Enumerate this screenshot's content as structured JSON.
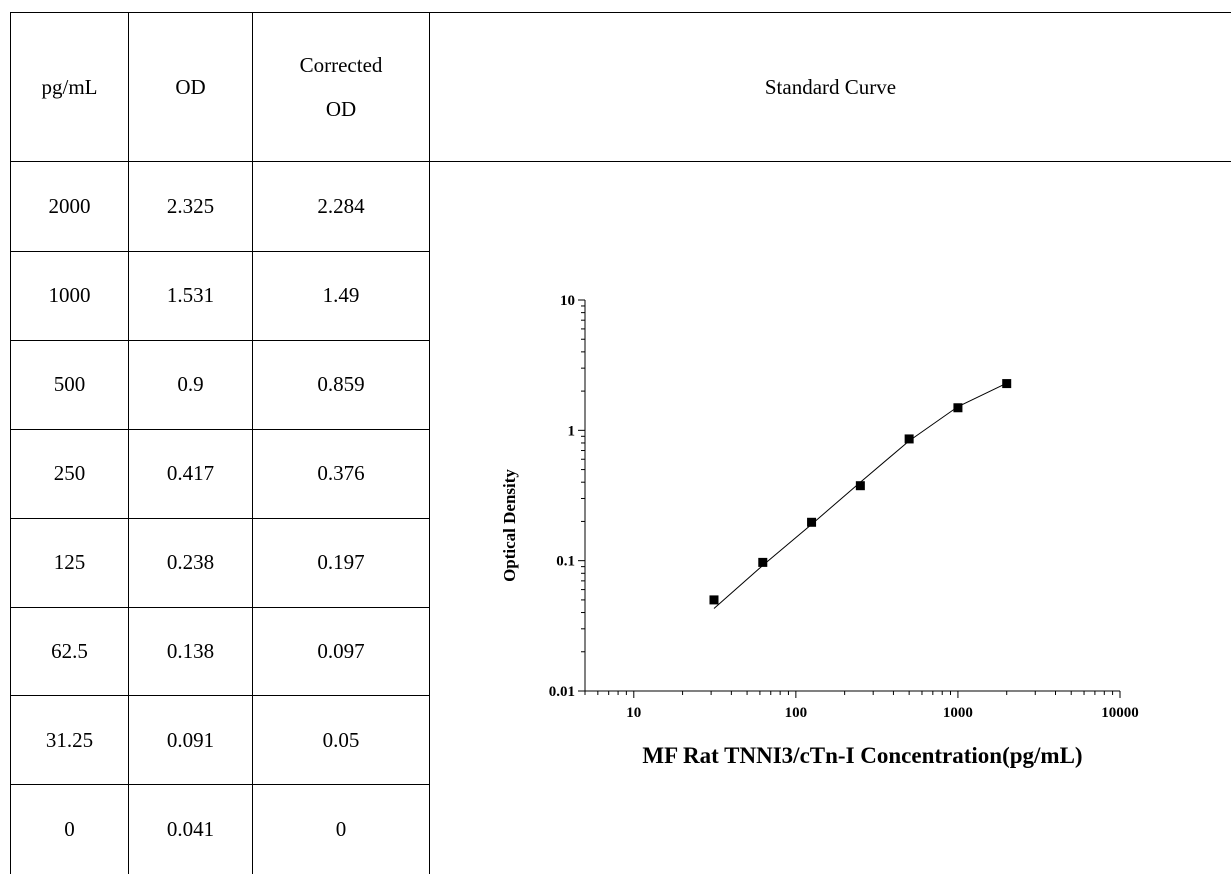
{
  "table": {
    "headers": {
      "conc": "pg/mL",
      "od": "OD",
      "corrected_line1": "Corrected",
      "corrected_line2": "OD"
    },
    "rows": [
      {
        "conc": "2000",
        "od": "2.325",
        "corrected": "2.284"
      },
      {
        "conc": "1000",
        "od": "1.531",
        "corrected": "1.49"
      },
      {
        "conc": "500",
        "od": "0.9",
        "corrected": "0.859"
      },
      {
        "conc": "250",
        "od": "0.417",
        "corrected": "0.376"
      },
      {
        "conc": "125",
        "od": "0.238",
        "corrected": "0.197"
      },
      {
        "conc": "62.5",
        "od": "0.138",
        "corrected": "0.097"
      },
      {
        "conc": "31.25",
        "od": "0.091",
        "corrected": "0.05"
      },
      {
        "conc": "0",
        "od": "0.041",
        "corrected": "0"
      }
    ],
    "curve_header": "Standard Curve"
  },
  "chart_data": {
    "type": "scatter",
    "title": "",
    "xlabel": "MF Rat TNNI3/cTn-I Concentration(pg/mL)",
    "ylabel": "Optical Density",
    "x_scale": "log",
    "y_scale": "log",
    "xlim": [
      5,
      10000
    ],
    "ylim": [
      0.01,
      10
    ],
    "x_ticks": [
      "10",
      "100",
      "1000",
      "10000"
    ],
    "y_ticks": [
      "0.01",
      "0.1",
      "1",
      "10"
    ],
    "grid": false,
    "legend": "none",
    "series": [
      {
        "marker": "square",
        "x": [
          31.25,
          62.5,
          125,
          250,
          500,
          1000,
          2000
        ],
        "y": [
          0.05,
          0.097,
          0.197,
          0.376,
          0.859,
          1.49,
          2.284
        ]
      }
    ],
    "fit_curve": {
      "x": [
        31.25,
        62.5,
        125,
        250,
        500,
        1000,
        2000
      ],
      "y": [
        0.043,
        0.092,
        0.19,
        0.4,
        0.83,
        1.52,
        2.3
      ]
    },
    "colors": {
      "marker": "#000000",
      "line": "#000000"
    }
  }
}
